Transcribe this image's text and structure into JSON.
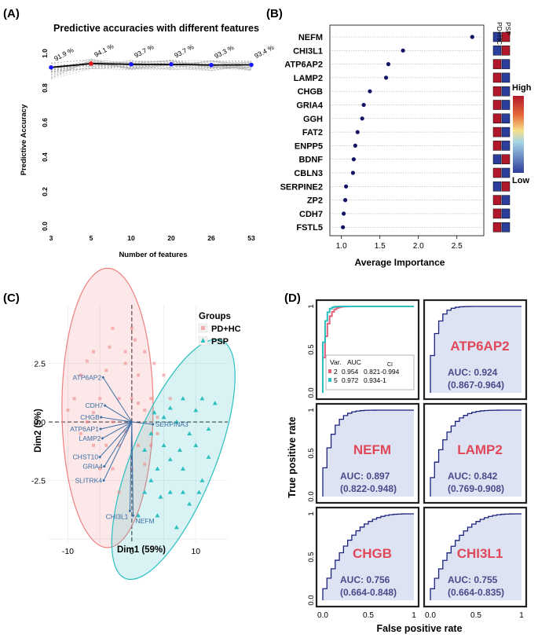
{
  "figure": {
    "panel_a": "(A)",
    "panel_b": "(B)",
    "panel_c": "(C)",
    "panel_d": "(D)"
  },
  "chart_data": [
    {
      "id": "A",
      "type": "line",
      "title": "Predictive accuracies with different features",
      "xlabel": "Number of features",
      "ylabel": "Predictive Accuracy",
      "categories": [
        "3",
        "5",
        "10",
        "20",
        "26",
        "53"
      ],
      "values": [
        0.919,
        0.941,
        0.937,
        0.937,
        0.933,
        0.934
      ],
      "point_labels": [
        "91.9 %",
        "94.1 %",
        "93.7 %",
        "93.7 %",
        "93.3 %",
        "93.4 %"
      ],
      "best_index": 1,
      "yticks": [
        "0.0",
        "0.2",
        "0.4",
        "0.6",
        "0.8",
        "1.0"
      ],
      "ylim": [
        0,
        1.0
      ],
      "colors": {
        "best": "#e41a1c",
        "point": "#1a1aff",
        "line": "#000000",
        "background_lines": "#aaaaaa"
      }
    },
    {
      "id": "B",
      "type": "scatter",
      "xlabel": "Average Importance",
      "genes": [
        "NEFM",
        "CHI3L1",
        "ATP6AP2",
        "LAMP2",
        "CHGB",
        "GRIA4",
        "GGH",
        "FAT2",
        "ENPP5",
        "BDNF",
        "CBLN3",
        "SERPINE2",
        "ZP2",
        "CDH7",
        "FSTL5"
      ],
      "values": [
        2.7,
        1.8,
        1.61,
        1.58,
        1.37,
        1.29,
        1.27,
        1.21,
        1.18,
        1.16,
        1.15,
        1.06,
        1.05,
        1.03,
        1.02
      ],
      "xticks": [
        "1.0",
        "1.5",
        "2.0",
        "2.5"
      ],
      "xlim": [
        0.85,
        2.85
      ],
      "heat_columns": [
        "PD+HC",
        "PSP"
      ],
      "heat_pd_high": [
        false,
        false,
        true,
        true,
        true,
        true,
        true,
        true,
        true,
        false,
        true,
        false,
        true,
        true,
        true
      ],
      "legend_high": "High",
      "legend_low": "Low",
      "colors": {
        "high": "#b2182b",
        "low": "#2c3e9b",
        "point": "#141466"
      }
    },
    {
      "id": "C",
      "type": "scatter",
      "xlabel": "Dim1 (59%)",
      "ylabel": "Dim2 (5%)",
      "xticks": [
        "-10",
        "0",
        "10"
      ],
      "yticks": [
        "2.5",
        "0.0",
        "-2.5"
      ],
      "xlim": [
        -13,
        15
      ],
      "ylim": [
        -5.2,
        5.0
      ],
      "legend_title": "Groups",
      "groups": [
        {
          "name": "PD+HC",
          "color": "#f08080",
          "marker": "square",
          "points": [
            [
              -8,
              2
            ],
            [
              -6,
              3
            ],
            [
              -3,
              4
            ],
            [
              -1,
              3
            ],
            [
              0,
              4
            ],
            [
              1,
              2
            ],
            [
              -2,
              1
            ],
            [
              -5,
              1
            ],
            [
              -7,
              0
            ],
            [
              -4,
              -1
            ],
            [
              -3,
              -2
            ],
            [
              0,
              1
            ],
            [
              2,
              0.5
            ],
            [
              3,
              1
            ],
            [
              -9,
              1
            ],
            [
              -6,
              -1
            ],
            [
              -2,
              -1
            ],
            [
              1,
              -1
            ],
            [
              4,
              0.2
            ],
            [
              5,
              2
            ],
            [
              -1,
              2.5
            ],
            [
              -4,
              2.2
            ],
            [
              2,
              3
            ],
            [
              -5,
              -2
            ],
            [
              -2,
              -3
            ],
            [
              0,
              -2
            ],
            [
              3,
              -1
            ],
            [
              -7,
              2.6
            ],
            [
              -8,
              -0.5
            ],
            [
              -3,
              0
            ],
            [
              1,
              0.8
            ],
            [
              4,
              -0.5
            ],
            [
              6,
              1
            ],
            [
              -1,
              -0.4
            ],
            [
              -6,
              0.4
            ],
            [
              2,
              -1.8
            ],
            [
              0.5,
              3.5
            ],
            [
              -10,
              0.5
            ],
            [
              -3.5,
              3.2
            ],
            [
              3.5,
              2.5
            ]
          ]
        },
        {
          "name": "PSP",
          "color": "#2bbfc0",
          "marker": "triangle",
          "points": [
            [
              3,
              -0.5
            ],
            [
              5,
              -1
            ],
            [
              7,
              0
            ],
            [
              8,
              -2
            ],
            [
              10,
              -1
            ],
            [
              12,
              -0.3
            ],
            [
              6,
              -3
            ],
            [
              9,
              -3.5
            ],
            [
              4,
              -2
            ],
            [
              11,
              -2.5
            ],
            [
              13,
              0.8
            ],
            [
              2,
              -3
            ],
            [
              8,
              1
            ],
            [
              6,
              0.6
            ],
            [
              10,
              0.5
            ],
            [
              4,
              -4
            ],
            [
              7,
              -4.5
            ],
            [
              3,
              -2.5
            ],
            [
              9,
              -0.5
            ],
            [
              5,
              0.2
            ],
            [
              11,
              1
            ],
            [
              12,
              -1.5
            ],
            [
              1,
              -4
            ],
            [
              6,
              -1.6
            ],
            [
              8,
              -3
            ],
            [
              2,
              -1.2
            ],
            [
              4.5,
              -3.2
            ],
            [
              7.5,
              -1.2
            ],
            [
              10.5,
              -3
            ],
            [
              3.5,
              0.4
            ]
          ]
        }
      ],
      "ellipses": [
        {
          "group": "PD+HC",
          "cx": -3.8,
          "cy": 0.6,
          "rx": 11.5,
          "ry": 3.7,
          "angle_deg": -62
        },
        {
          "group": "PSP",
          "cx": 6.5,
          "cy": -1.6,
          "rx": 10.5,
          "ry": 3.4,
          "angle_deg": -40
        }
      ],
      "loadings": [
        {
          "label": "ATP6AP2",
          "x": -4.5,
          "y": 1.9
        },
        {
          "label": "CDH7",
          "x": -4.2,
          "y": 0.7
        },
        {
          "label": "CHGB",
          "x": -4.8,
          "y": 0.2
        },
        {
          "label": "ATP6AP1",
          "x": -4.9,
          "y": -0.3
        },
        {
          "label": "LAMP2",
          "x": -4.6,
          "y": -0.7
        },
        {
          "label": "CHST10",
          "x": -5.0,
          "y": -1.5
        },
        {
          "label": "GRIA4",
          "x": -4.3,
          "y": -1.9
        },
        {
          "label": "SLITRK4",
          "x": -4.4,
          "y": -2.5
        },
        {
          "label": "SERPINA3",
          "x": 3.3,
          "y": -0.1
        },
        {
          "label": "CHI3L1",
          "x": -0.3,
          "y": -3.8
        },
        {
          "label": "NEFM",
          "x": 0.2,
          "y": -4.0
        }
      ]
    },
    {
      "id": "D",
      "type": "line",
      "xlabel": "False positive rate",
      "ylabel": "True positive rate",
      "xticks": [
        "0.0",
        "0.5",
        "1"
      ],
      "yticks": [
        "0.0",
        "0.5",
        "1"
      ],
      "combined": {
        "legend_head_var": "Var.",
        "legend_head_auc": "AUC",
        "legend_head_ci": "CI",
        "series": [
          {
            "var": "2",
            "auc": "0.954",
            "ci": "0.821-0.994",
            "color": "#e0607a"
          },
          {
            "var": "5",
            "auc": "0.972",
            "ci": "0.934-1",
            "color": "#2bbfc0"
          }
        ]
      },
      "markers": [
        {
          "gene": "ATP6AP2",
          "auc_label": "AUC: 0.924",
          "ci_label": "(0.867-0.964)",
          "auc": 0.924
        },
        {
          "gene": "NEFM",
          "auc_label": "AUC: 0.897",
          "ci_label": "(0.822-0.948)",
          "auc": 0.897
        },
        {
          "gene": "LAMP2",
          "auc_label": "AUC: 0.842",
          "ci_label": "(0.769-0.908)",
          "auc": 0.842
        },
        {
          "gene": "CHGB",
          "auc_label": "AUC: 0.756",
          "ci_label": "(0.664-0.848)",
          "auc": 0.756
        },
        {
          "gene": "CHI3L1",
          "auc_label": "AUC: 0.755",
          "ci_label": "(0.664-0.835)",
          "auc": 0.755
        }
      ],
      "colors": {
        "gene_text": "#e0485a",
        "auc_text": "#4a4a8a",
        "curve": "#1a237e",
        "fill": "#dde3f3"
      }
    }
  ]
}
